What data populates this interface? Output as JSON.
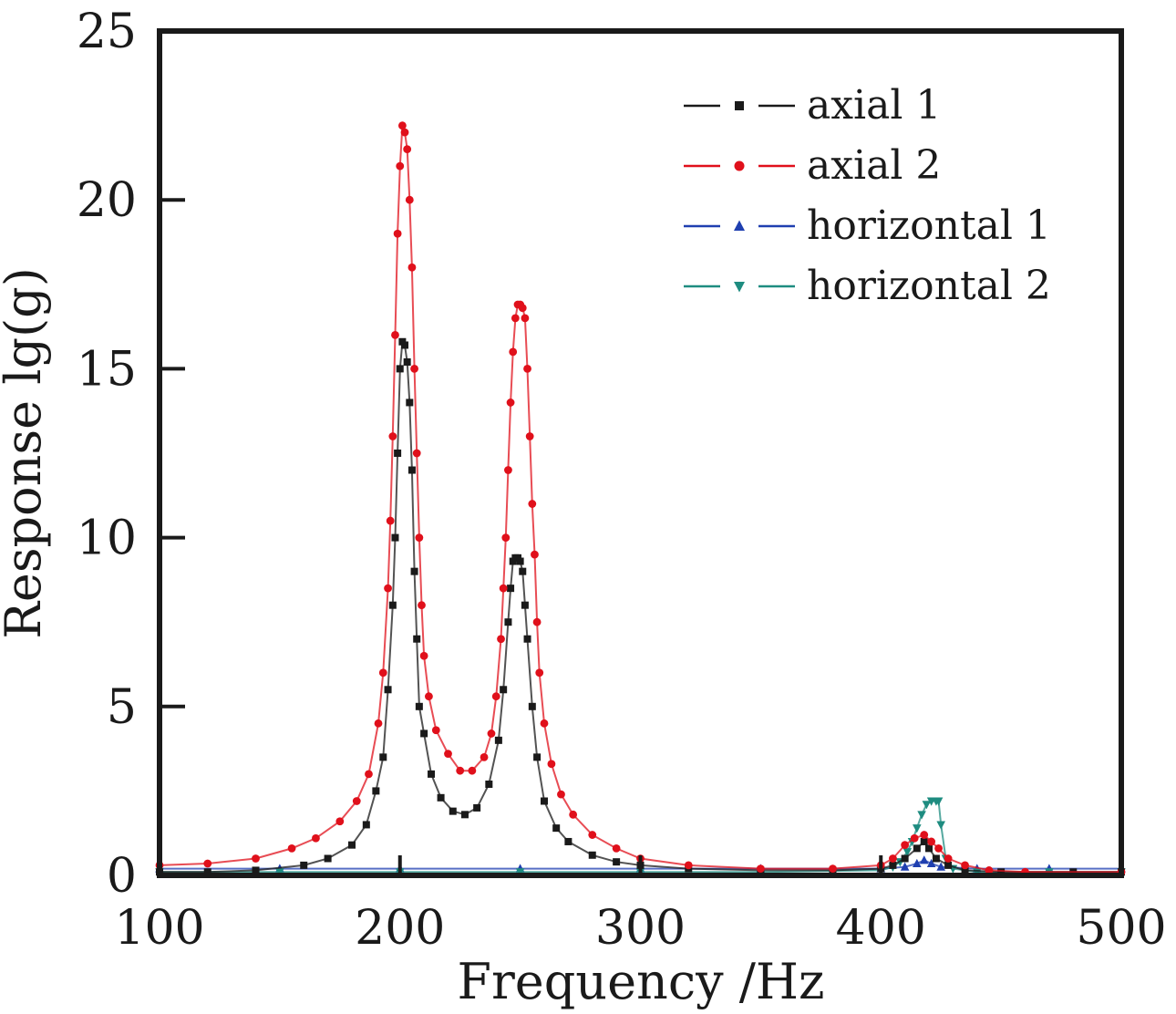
{
  "chart_data": {
    "type": "line",
    "title": "",
    "xlabel": "Frequency /Hz",
    "ylabel": "Response lg(g)",
    "xlim": [
      100,
      500
    ],
    "ylim": [
      0,
      25
    ],
    "x_ticks": [
      100,
      200,
      300,
      400,
      500
    ],
    "y_ticks": [
      0,
      5,
      10,
      15,
      20,
      25
    ],
    "x_tick_labels": [
      "100",
      "200",
      "300",
      "400",
      "500"
    ],
    "y_tick_labels": [
      "0",
      "5",
      "10",
      "15",
      "20",
      "25"
    ],
    "grid": false,
    "legend_position": "top-right",
    "series": [
      {
        "name": "axial 1",
        "color": "#1a1a1a",
        "marker": "square",
        "points": [
          [
            100,
            0.1
          ],
          [
            120,
            0.1
          ],
          [
            140,
            0.15
          ],
          [
            160,
            0.3
          ],
          [
            170,
            0.5
          ],
          [
            180,
            0.9
          ],
          [
            186,
            1.5
          ],
          [
            190,
            2.5
          ],
          [
            193,
            3.5
          ],
          [
            195,
            5.5
          ],
          [
            197,
            8
          ],
          [
            198,
            10
          ],
          [
            199,
            12.5
          ],
          [
            200,
            15
          ],
          [
            201,
            15.8
          ],
          [
            202,
            15.7
          ],
          [
            203,
            15.2
          ],
          [
            204,
            14
          ],
          [
            205,
            12
          ],
          [
            206,
            9
          ],
          [
            207,
            7
          ],
          [
            208,
            5
          ],
          [
            210,
            4.2
          ],
          [
            213,
            3
          ],
          [
            217,
            2.3
          ],
          [
            222,
            1.9
          ],
          [
            227,
            1.8
          ],
          [
            232,
            2
          ],
          [
            237,
            2.7
          ],
          [
            241,
            4
          ],
          [
            243,
            5.5
          ],
          [
            245,
            7.5
          ],
          [
            246,
            8.5
          ],
          [
            247,
            9.3
          ],
          [
            248,
            9.4
          ],
          [
            249,
            9.4
          ],
          [
            250,
            9.3
          ],
          [
            251,
            9
          ],
          [
            252,
            8
          ],
          [
            253,
            7
          ],
          [
            255,
            5
          ],
          [
            257,
            3.5
          ],
          [
            260,
            2.2
          ],
          [
            265,
            1.4
          ],
          [
            270,
            1
          ],
          [
            280,
            0.6
          ],
          [
            290,
            0.4
          ],
          [
            300,
            0.3
          ],
          [
            320,
            0.2
          ],
          [
            350,
            0.15
          ],
          [
            380,
            0.15
          ],
          [
            400,
            0.2
          ],
          [
            405,
            0.3
          ],
          [
            410,
            0.5
          ],
          [
            415,
            0.8
          ],
          [
            418,
            1
          ],
          [
            420,
            0.8
          ],
          [
            423,
            0.5
          ],
          [
            428,
            0.3
          ],
          [
            435,
            0.15
          ],
          [
            450,
            0.1
          ],
          [
            480,
            0.1
          ],
          [
            500,
            0.1
          ]
        ]
      },
      {
        "name": "axial 2",
        "color": "#e0101b",
        "marker": "circle",
        "points": [
          [
            100,
            0.3
          ],
          [
            120,
            0.35
          ],
          [
            140,
            0.5
          ],
          [
            155,
            0.8
          ],
          [
            165,
            1.1
          ],
          [
            175,
            1.6
          ],
          [
            182,
            2.2
          ],
          [
            187,
            3
          ],
          [
            191,
            4.5
          ],
          [
            193,
            6
          ],
          [
            195,
            8.5
          ],
          [
            196,
            10.5
          ],
          [
            197,
            13
          ],
          [
            198,
            16
          ],
          [
            199,
            19
          ],
          [
            200,
            21
          ],
          [
            201,
            22.2
          ],
          [
            202,
            22
          ],
          [
            203,
            21.5
          ],
          [
            204,
            20
          ],
          [
            205,
            18
          ],
          [
            206,
            15
          ],
          [
            207,
            12.5
          ],
          [
            208,
            10
          ],
          [
            209,
            8
          ],
          [
            210,
            6.5
          ],
          [
            212,
            5.3
          ],
          [
            215,
            4.3
          ],
          [
            220,
            3.6
          ],
          [
            225,
            3.1
          ],
          [
            230,
            3.1
          ],
          [
            235,
            3.5
          ],
          [
            238,
            4.2
          ],
          [
            240,
            5.3
          ],
          [
            242,
            7
          ],
          [
            243,
            8.5
          ],
          [
            244,
            10
          ],
          [
            245,
            12
          ],
          [
            246,
            14
          ],
          [
            247,
            15.5
          ],
          [
            248,
            16.5
          ],
          [
            249,
            16.9
          ],
          [
            250,
            16.9
          ],
          [
            251,
            16.8
          ],
          [
            252,
            16.5
          ],
          [
            253,
            15
          ],
          [
            254,
            13
          ],
          [
            255,
            11
          ],
          [
            256,
            9.5
          ],
          [
            257,
            7.5
          ],
          [
            258,
            6
          ],
          [
            260,
            4.5
          ],
          [
            263,
            3.3
          ],
          [
            267,
            2.4
          ],
          [
            272,
            1.8
          ],
          [
            280,
            1.2
          ],
          [
            290,
            0.8
          ],
          [
            300,
            0.5
          ],
          [
            320,
            0.3
          ],
          [
            350,
            0.2
          ],
          [
            380,
            0.2
          ],
          [
            400,
            0.3
          ],
          [
            405,
            0.5
          ],
          [
            410,
            0.9
          ],
          [
            414,
            1.1
          ],
          [
            418,
            1.2
          ],
          [
            421,
            1
          ],
          [
            424,
            0.8
          ],
          [
            428,
            0.5
          ],
          [
            435,
            0.3
          ],
          [
            445,
            0.15
          ],
          [
            460,
            0.1
          ],
          [
            500,
            0.1
          ]
        ]
      },
      {
        "name": "horizontal 1",
        "color": "#1f3fb0",
        "marker": "triangle-up",
        "points": [
          [
            100,
            0.2
          ],
          [
            150,
            0.2
          ],
          [
            200,
            0.2
          ],
          [
            250,
            0.2
          ],
          [
            300,
            0.2
          ],
          [
            350,
            0.2
          ],
          [
            400,
            0.2
          ],
          [
            410,
            0.25
          ],
          [
            415,
            0.35
          ],
          [
            418,
            0.45
          ],
          [
            421,
            0.35
          ],
          [
            425,
            0.25
          ],
          [
            440,
            0.2
          ],
          [
            470,
            0.2
          ],
          [
            500,
            0.2
          ]
        ]
      },
      {
        "name": "horizontal 2",
        "color": "#1e8c80",
        "marker": "triangle-down",
        "points": [
          [
            100,
            0.1
          ],
          [
            150,
            0.1
          ],
          [
            200,
            0.1
          ],
          [
            250,
            0.1
          ],
          [
            300,
            0.1
          ],
          [
            350,
            0.1
          ],
          [
            400,
            0.15
          ],
          [
            405,
            0.25
          ],
          [
            408,
            0.4
          ],
          [
            411,
            0.7
          ],
          [
            413,
            1
          ],
          [
            415,
            1.4
          ],
          [
            417,
            1.8
          ],
          [
            419,
            2.1
          ],
          [
            421,
            2.2
          ],
          [
            423,
            2.2
          ],
          [
            424,
            2.2
          ],
          [
            425,
            1.5
          ],
          [
            427,
            0.5
          ],
          [
            430,
            0.2
          ],
          [
            440,
            0.1
          ],
          [
            470,
            0.1
          ],
          [
            500,
            0.1
          ]
        ]
      }
    ]
  }
}
